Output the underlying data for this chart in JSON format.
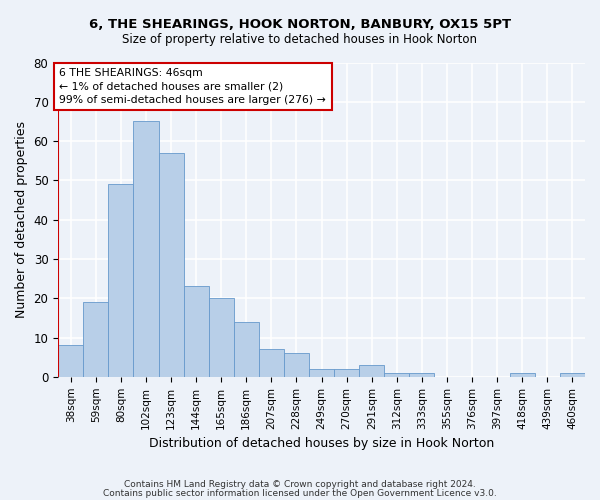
{
  "title1": "6, THE SHEARINGS, HOOK NORTON, BANBURY, OX15 5PT",
  "title2": "Size of property relative to detached houses in Hook Norton",
  "xlabel": "Distribution of detached houses by size in Hook Norton",
  "ylabel": "Number of detached properties",
  "categories": [
    "38sqm",
    "59sqm",
    "80sqm",
    "102sqm",
    "123sqm",
    "144sqm",
    "165sqm",
    "186sqm",
    "207sqm",
    "228sqm",
    "249sqm",
    "270sqm",
    "291sqm",
    "312sqm",
    "333sqm",
    "355sqm",
    "376sqm",
    "397sqm",
    "418sqm",
    "439sqm",
    "460sqm"
  ],
  "values": [
    8,
    19,
    49,
    65,
    57,
    23,
    20,
    14,
    7,
    6,
    2,
    2,
    3,
    1,
    1,
    0,
    0,
    0,
    1,
    0,
    1
  ],
  "bar_color": "#b8cfe8",
  "bar_edge_color": "#6699cc",
  "annotation_line1": "6 THE SHEARINGS: 46sqm",
  "annotation_line2": "← 1% of detached houses are smaller (2)",
  "annotation_line3": "99% of semi-detached houses are larger (276) →",
  "annotation_box_color": "#ffffff",
  "annotation_box_edge_color": "#cc0000",
  "ylim": [
    0,
    80
  ],
  "yticks": [
    0,
    10,
    20,
    30,
    40,
    50,
    60,
    70,
    80
  ],
  "footer1": "Contains HM Land Registry data © Crown copyright and database right 2024.",
  "footer2": "Contains public sector information licensed under the Open Government Licence v3.0.",
  "bg_color": "#edf2f9",
  "grid_color": "#ffffff",
  "highlight_line_color": "#cc0000"
}
